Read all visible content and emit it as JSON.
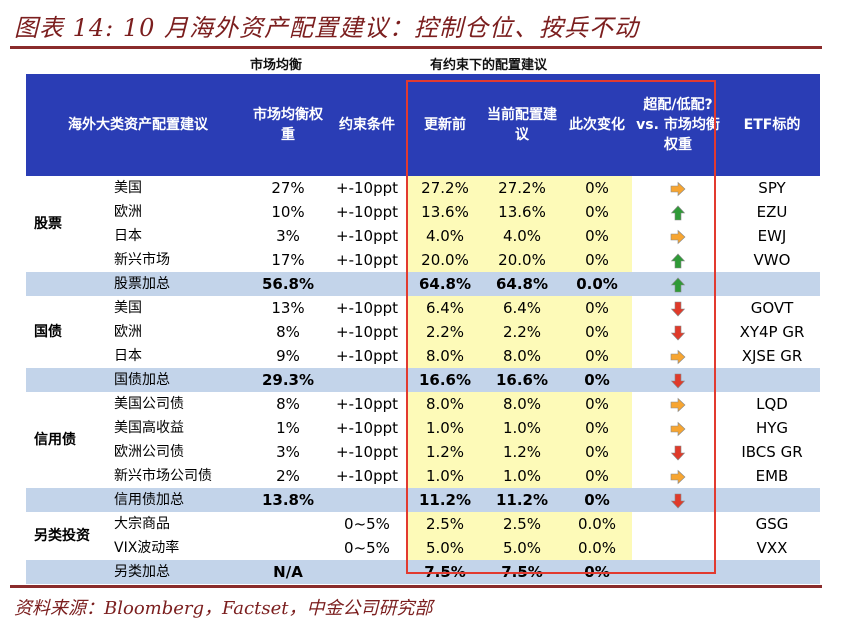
{
  "title": "图表 14: 10 月海外资产配置建议：控制仓位、按兵不动",
  "source": "资料来源：Bloomberg，Factset，中金公司研究部",
  "super_headers": {
    "equilibrium": "市场均衡",
    "constrained": "有约束下的配置建议"
  },
  "headers": {
    "asset": "海外大类资产配置建议",
    "weight": "市场均衡权重",
    "constraint": "约束条件",
    "before": "更新前",
    "current": "当前配置建议",
    "change": "此次变化",
    "overunder": "超配/低配? vs. 市场均衡权重",
    "etf": "ETF标的"
  },
  "groups": [
    {
      "name": "股票",
      "rows": [
        {
          "sub": "美国",
          "weight": "27%",
          "constraint": "+-10ppt",
          "before": "27.2%",
          "current": "27.2%",
          "change": "0%",
          "arrow": "right",
          "etf": "SPY"
        },
        {
          "sub": "欧洲",
          "weight": "10%",
          "constraint": "+-10ppt",
          "before": "13.6%",
          "current": "13.6%",
          "change": "0%",
          "arrow": "up",
          "etf": "EZU"
        },
        {
          "sub": "日本",
          "weight": "3%",
          "constraint": "+-10ppt",
          "before": "4.0%",
          "current": "4.0%",
          "change": "0%",
          "arrow": "right",
          "etf": "EWJ"
        },
        {
          "sub": "新兴市场",
          "weight": "17%",
          "constraint": "+-10ppt",
          "before": "20.0%",
          "current": "20.0%",
          "change": "0%",
          "arrow": "up",
          "etf": "VWO"
        }
      ],
      "total": {
        "sub": "股票加总",
        "weight": "56.8%",
        "constraint": "",
        "before": "64.8%",
        "current": "64.8%",
        "change": "0.0%",
        "arrow": "up",
        "etf": ""
      }
    },
    {
      "name": "国债",
      "rows": [
        {
          "sub": "美国",
          "weight": "13%",
          "constraint": "+-10ppt",
          "before": "6.4%",
          "current": "6.4%",
          "change": "0%",
          "arrow": "down",
          "etf": "GOVT"
        },
        {
          "sub": "欧洲",
          "weight": "8%",
          "constraint": "+-10ppt",
          "before": "2.2%",
          "current": "2.2%",
          "change": "0%",
          "arrow": "down",
          "etf": "XY4P GR"
        },
        {
          "sub": "日本",
          "weight": "9%",
          "constraint": "+-10ppt",
          "before": "8.0%",
          "current": "8.0%",
          "change": "0%",
          "arrow": "right",
          "etf": "XJSE GR"
        }
      ],
      "total": {
        "sub": "国债加总",
        "weight": "29.3%",
        "constraint": "",
        "before": "16.6%",
        "current": "16.6%",
        "change": "0%",
        "arrow": "down",
        "etf": ""
      }
    },
    {
      "name": "信用债",
      "rows": [
        {
          "sub": "美国公司债",
          "weight": "8%",
          "constraint": "+-10ppt",
          "before": "8.0%",
          "current": "8.0%",
          "change": "0%",
          "arrow": "right",
          "etf": "LQD"
        },
        {
          "sub": "美国高收益",
          "weight": "1%",
          "constraint": "+-10ppt",
          "before": "1.0%",
          "current": "1.0%",
          "change": "0%",
          "arrow": "right",
          "etf": "HYG"
        },
        {
          "sub": "欧洲公司债",
          "weight": "3%",
          "constraint": "+-10ppt",
          "before": "1.2%",
          "current": "1.2%",
          "change": "0%",
          "arrow": "down",
          "etf": "IBCS GR"
        },
        {
          "sub": "新兴市场公司债",
          "weight": "2%",
          "constraint": "+-10ppt",
          "before": "1.0%",
          "current": "1.0%",
          "change": "0%",
          "arrow": "right",
          "etf": "EMB"
        }
      ],
      "total": {
        "sub": "信用债加总",
        "weight": "13.8%",
        "constraint": "",
        "before": "11.2%",
        "current": "11.2%",
        "change": "0%",
        "arrow": "down",
        "etf": ""
      }
    },
    {
      "name": "另类投资",
      "rows": [
        {
          "sub": "大宗商品",
          "weight": "",
          "constraint": "0~5%",
          "before": "2.5%",
          "current": "2.5%",
          "change": "0.0%",
          "arrow": "",
          "etf": "GSG"
        },
        {
          "sub": "VIX波动率",
          "weight": "",
          "constraint": "0~5%",
          "before": "5.0%",
          "current": "5.0%",
          "change": "0.0%",
          "arrow": "",
          "etf": "VXX"
        }
      ],
      "total": {
        "sub": "另类加总",
        "weight": "N/A",
        "constraint": "",
        "before": "7.5%",
        "current": "7.5%",
        "change": "0%",
        "arrow": "",
        "etf": ""
      }
    }
  ],
  "colors": {
    "header_bg": "#2a3db5",
    "total_bg": "#c3d4ea",
    "highlight_bg": "#fdfab8",
    "box_border": "#e23a2f",
    "arrow_orange": "#f7a531",
    "arrow_green": "#2f9a37",
    "arrow_red": "#e03a2a",
    "accent": "#7b1e1e"
  }
}
